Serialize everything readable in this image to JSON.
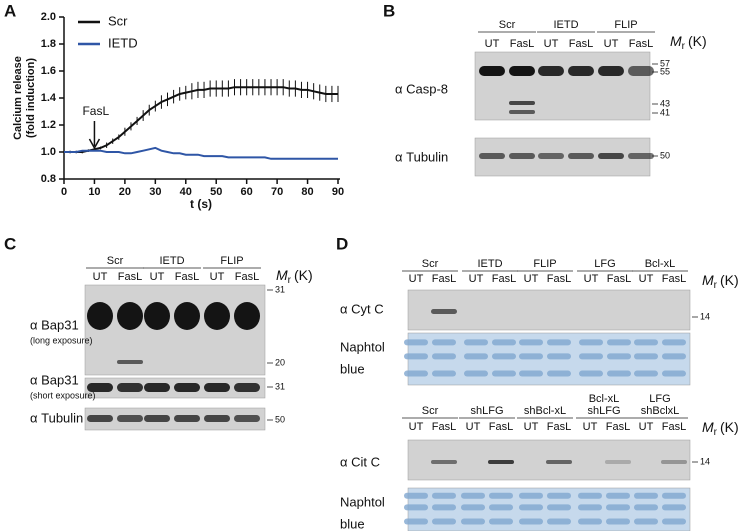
{
  "chart_data": {
    "type": "line",
    "letter": "A",
    "xlabel": "t (s)",
    "ylabel": [
      "Calcium release",
      "(fold induction)"
    ],
    "x": [
      0,
      2,
      4,
      6,
      8,
      10,
      12,
      14,
      16,
      18,
      20,
      22,
      24,
      26,
      28,
      30,
      32,
      34,
      36,
      38,
      40,
      42,
      44,
      46,
      48,
      50,
      52,
      54,
      56,
      58,
      60,
      62,
      64,
      66,
      68,
      70,
      72,
      74,
      76,
      78,
      80,
      82,
      84,
      86,
      88,
      90
    ],
    "series": [
      {
        "name": "Scr",
        "color": "#111111",
        "values": [
          1.0,
          1.0,
          1.0,
          1.0,
          1.01,
          1.02,
          1.03,
          1.05,
          1.08,
          1.11,
          1.15,
          1.19,
          1.23,
          1.27,
          1.31,
          1.34,
          1.37,
          1.39,
          1.41,
          1.43,
          1.44,
          1.45,
          1.46,
          1.46,
          1.47,
          1.47,
          1.47,
          1.47,
          1.48,
          1.48,
          1.48,
          1.48,
          1.48,
          1.48,
          1.48,
          1.48,
          1.48,
          1.47,
          1.47,
          1.46,
          1.46,
          1.45,
          1.44,
          1.43,
          1.43,
          1.43
        ],
        "errors": [
          0.01,
          0.01,
          0.01,
          0.01,
          0.01,
          0.01,
          0.01,
          0.02,
          0.02,
          0.02,
          0.03,
          0.03,
          0.03,
          0.04,
          0.04,
          0.04,
          0.05,
          0.05,
          0.05,
          0.05,
          0.05,
          0.06,
          0.06,
          0.06,
          0.06,
          0.06,
          0.06,
          0.06,
          0.06,
          0.06,
          0.06,
          0.06,
          0.06,
          0.06,
          0.06,
          0.06,
          0.06,
          0.06,
          0.06,
          0.06,
          0.06,
          0.06,
          0.06,
          0.06,
          0.06,
          0.06
        ]
      },
      {
        "name": "IETD",
        "color": "#2f56a6",
        "values": [
          1.0,
          1.0,
          1.0,
          1.01,
          1.01,
          1.01,
          1.01,
          1.0,
          1.0,
          1.0,
          0.99,
          0.99,
          1.0,
          1.01,
          1.02,
          1.03,
          1.01,
          1.0,
          0.99,
          0.99,
          0.98,
          0.98,
          0.98,
          0.97,
          0.97,
          0.97,
          0.97,
          0.96,
          0.96,
          0.96,
          0.96,
          0.96,
          0.96,
          0.96,
          0.95,
          0.95,
          0.95,
          0.95,
          0.95,
          0.95,
          0.95,
          0.95,
          0.95,
          0.95,
          0.95,
          0.95
        ]
      }
    ],
    "annotations": [
      {
        "text": "FasL",
        "x": 10
      }
    ],
    "xlim": [
      0,
      90
    ],
    "xticks": [
      0,
      10,
      20,
      30,
      40,
      50,
      60,
      70,
      80,
      90
    ],
    "ylim": [
      0.8,
      2.0
    ],
    "yticks": [
      0.8,
      {
        "value": 1.0,
        "label": "1.0"
      },
      1.2,
      1.4,
      1.6,
      1.8,
      {
        "value": 2.0,
        "label": "2.0"
      }
    ],
    "legend": "upper left"
  },
  "blots": [
    {
      "letter": "B",
      "mr": {
        "symbol": "M",
        "sub": "r",
        "unit": "(K)"
      },
      "groups": [
        {
          "name": [
            "Scr"
          ],
          "lanes": [
            "UT",
            "FasL"
          ]
        },
        {
          "name": [
            "IETD"
          ],
          "lanes": [
            "UT",
            "FasL"
          ]
        },
        {
          "name": [
            "FLIP"
          ],
          "lanes": [
            "UT",
            "FasL"
          ]
        }
      ],
      "strips": [
        {
          "label": [
            "α Casp-8"
          ],
          "markers": [
            57,
            55,
            43,
            41
          ]
        },
        {
          "label": [
            "α Tubulin"
          ],
          "markers": [
            50
          ]
        }
      ]
    },
    {
      "letter": "C",
      "mr": {
        "symbol": "M",
        "sub": "r",
        "unit": "(K)"
      },
      "groups": [
        {
          "name": [
            "Scr"
          ],
          "lanes": [
            "UT",
            "FasL"
          ]
        },
        {
          "name": [
            "IETD"
          ],
          "lanes": [
            "UT",
            "FasL"
          ]
        },
        {
          "name": [
            "FLIP"
          ],
          "lanes": [
            "UT",
            "FasL"
          ]
        }
      ],
      "strips": [
        {
          "label": [
            "α Bap31",
            "(long exposure)"
          ],
          "markers": [
            31,
            20
          ]
        },
        {
          "label": [
            "α Bap31",
            "(short exposure)"
          ],
          "markers": [
            31
          ]
        },
        {
          "label": [
            "α Tubulin"
          ],
          "markers": [
            50
          ]
        }
      ]
    },
    {
      "letter": "D",
      "mr": {
        "symbol": "M",
        "sub": "r",
        "unit": "(K)"
      },
      "groups": [
        {
          "name": [
            "Scr"
          ],
          "lanes": [
            "UT",
            "FasL"
          ]
        },
        {
          "name": [
            "IETD"
          ],
          "lanes": [
            "UT",
            "FasL"
          ]
        },
        {
          "name": [
            "FLIP"
          ],
          "lanes": [
            "UT",
            "FasL"
          ]
        },
        {
          "name": [
            "LFG"
          ],
          "lanes": [
            "UT",
            "FasL"
          ]
        },
        {
          "name": [
            "Bcl-xL"
          ],
          "lanes": [
            "UT",
            "FasL"
          ]
        }
      ],
      "strips": [
        {
          "label": [
            "α Cyt C"
          ],
          "markers": [
            14
          ]
        },
        {
          "label": [
            "Naphtol",
            "blue"
          ],
          "markers": []
        }
      ]
    },
    {
      "letter": null,
      "mr": {
        "symbol": "M",
        "sub": "r",
        "unit": "(K)"
      },
      "groups": [
        {
          "name": [
            "Scr"
          ],
          "lanes": [
            "UT",
            "FasL"
          ]
        },
        {
          "name": [
            "shLFG"
          ],
          "lanes": [
            "UT",
            "FasL"
          ]
        },
        {
          "name": [
            "shBcl-xL"
          ],
          "lanes": [
            "UT",
            "FasL"
          ]
        },
        {
          "name": [
            "Bcl-xL",
            "shLFG"
          ],
          "lanes": [
            "UT",
            "FasL"
          ]
        },
        {
          "name": [
            "LFG",
            "shBclxL"
          ],
          "lanes": [
            "UT",
            "FasL"
          ]
        }
      ],
      "strips": [
        {
          "label": [
            "α Cit C"
          ],
          "markers": [
            14
          ]
        },
        {
          "label": [
            "Naphtol",
            "blue"
          ],
          "markers": []
        }
      ]
    }
  ]
}
